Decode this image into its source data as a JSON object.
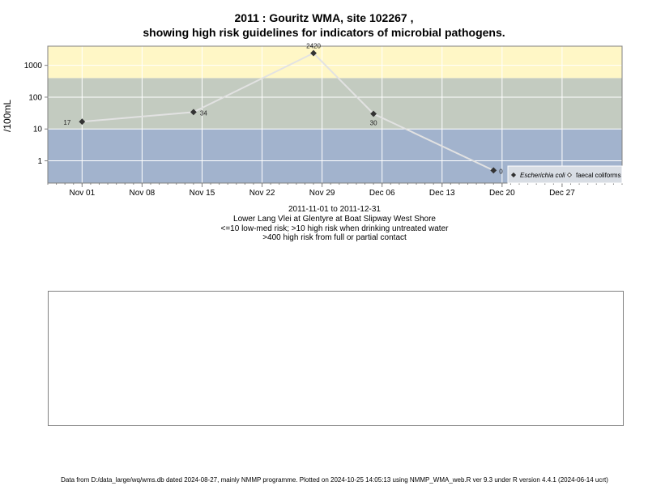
{
  "chart_data": {
    "type": "line",
    "title_line1": "2011 : Gouritz WMA, site 102267 ,",
    "title_line2": "showing high risk guidelines for indicators of microbial pathogens.",
    "ylabel": "/100mL",
    "y_scale": "log",
    "ylim": [
      0.2,
      4000
    ],
    "y_ticks": [
      1,
      10,
      100,
      1000
    ],
    "y_tick_labels": [
      "1",
      "10",
      "100",
      "1000"
    ],
    "xlim": [
      "2011-10-28",
      "2012-01-03"
    ],
    "x_ticks": [
      "2011-11-01",
      "2011-11-08",
      "2011-11-15",
      "2011-11-22",
      "2011-11-29",
      "2011-12-06",
      "2011-12-13",
      "2011-12-20",
      "2011-12-27"
    ],
    "x_tick_labels": [
      "Nov 01",
      "Nov 08",
      "Nov 15",
      "Nov 22",
      "Nov 29",
      "Dec 06",
      "Dec 13",
      "Dec 20",
      "Dec 27"
    ],
    "bands": [
      {
        "from": 0.2,
        "to": 10,
        "color": "#a2b3cd"
      },
      {
        "from": 10,
        "to": 400,
        "color": "#c3cbc0"
      },
      {
        "from": 400,
        "to": 4000,
        "color": "#fff7c6"
      }
    ],
    "grid": true,
    "legend_position": "bottom-right",
    "series": [
      {
        "name": "Escherichia coli",
        "marker": "diamond-filled",
        "line_color": "#e2e2e2",
        "x": [
          "2011-11-01",
          "2011-11-14",
          "2011-11-28",
          "2011-12-05",
          "2011-12-19"
        ],
        "y": [
          17,
          34,
          2420,
          30,
          0.5
        ],
        "point_labels": [
          "17",
          "34",
          "2420",
          "30",
          "0"
        ]
      }
    ],
    "legend": [
      {
        "label": "Escherichia coli",
        "marker": "diamond-filled",
        "italic": true
      },
      {
        "label": "faecal coliforms",
        "marker": "diamond-open",
        "italic": false
      }
    ],
    "colors": {
      "marker": "#333333",
      "grid": "#ffffff",
      "axis": "#808080"
    }
  },
  "subtitle": {
    "line1": "2011-11-01 to 2011-12-31",
    "line2": "Lower Lang Vlei at Glentyre at Boat Slipway West Shore",
    "line3": "<=10 low-med risk; >10 high risk when drinking untreated water",
    "line4": ">400 high risk from full or partial contact"
  },
  "footer": "Data from D:/data_large/wq/wms.db dated 2024-08-27, mainly NMMP programme. Plotted on 2024-10-25 14:05:13 using NMMP_WMA_web.R ver 9.3 under R version 4.4.1 (2024-06-14 ucrt)"
}
